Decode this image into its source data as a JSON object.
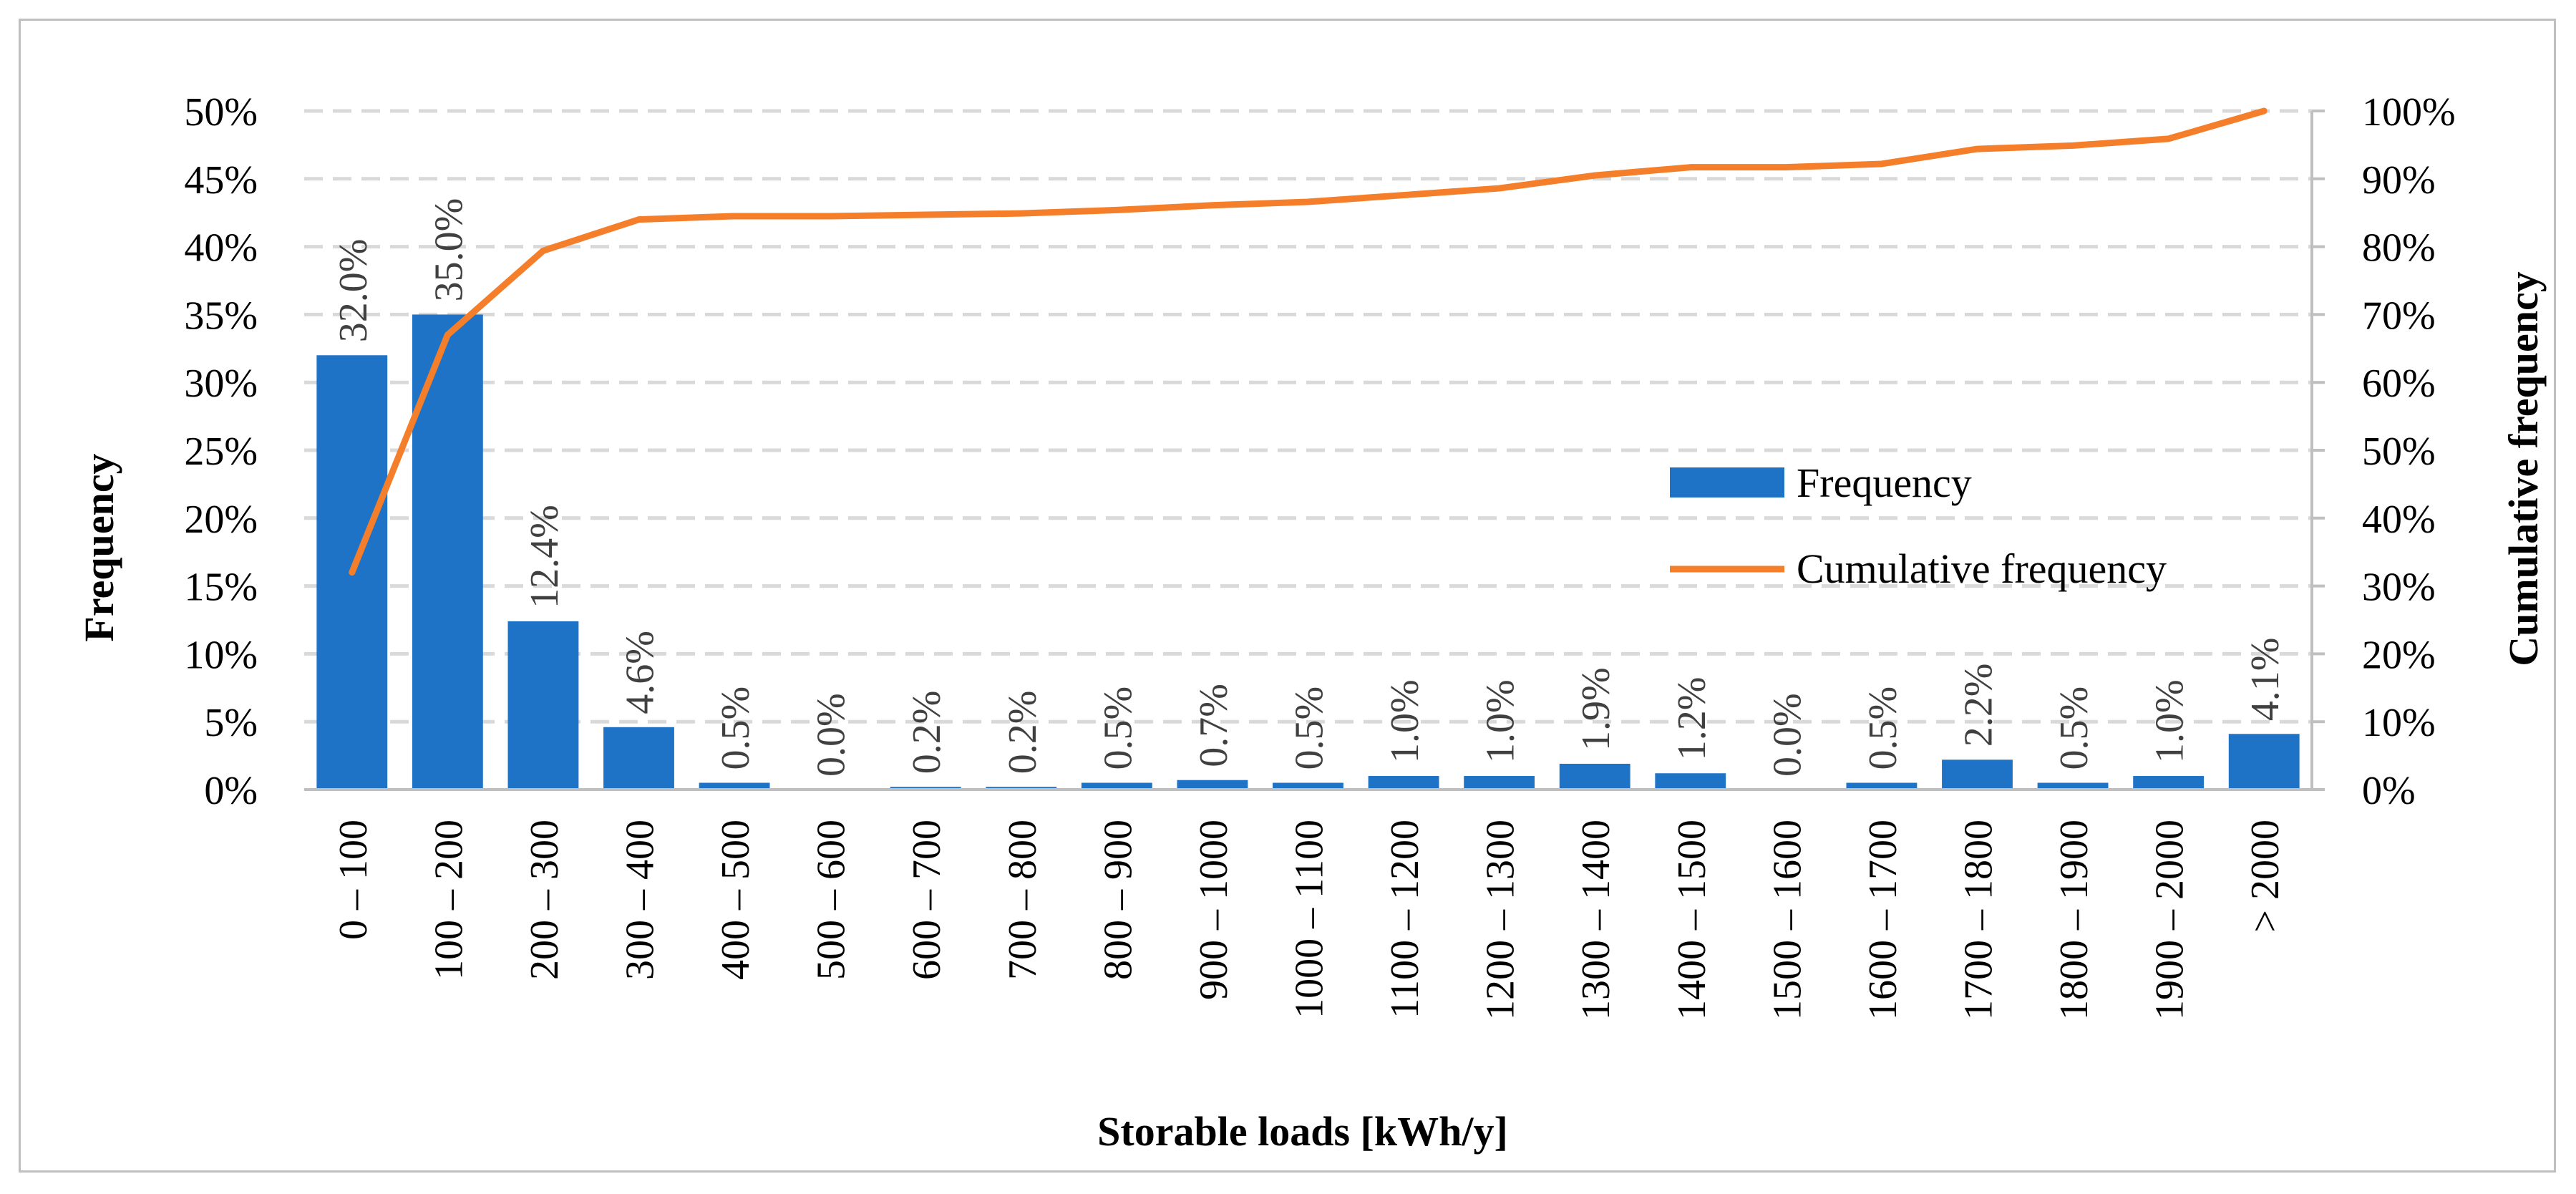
{
  "chart_data": {
    "type": "bar+line",
    "title": "",
    "xlabel": "Storable loads [kWh/y]",
    "ylabel": "Frequency",
    "y2label": "Cumulative frequency",
    "categories": [
      "0 – 100",
      "100 – 200",
      "200 – 300",
      "300 – 400",
      "400 – 500",
      "500 – 600",
      "600 – 700",
      "700 – 800",
      "800 – 900",
      "900 – 1000",
      "1000 – 1100",
      "1100 – 1200",
      "1200 – 1300",
      "1300 – 1400",
      "1400 – 1500",
      "1500 – 1600",
      "1600 – 1700",
      "1700 – 1800",
      "1800 – 1900",
      "1900 – 2000",
      "> 2000"
    ],
    "series": [
      {
        "name": "Frequency",
        "type": "bar",
        "axis": "left",
        "color": "#1F73C6",
        "values": [
          32.0,
          35.0,
          12.4,
          4.6,
          0.5,
          0.0,
          0.2,
          0.2,
          0.5,
          0.7,
          0.5,
          1.0,
          1.0,
          1.9,
          1.2,
          0.0,
          0.5,
          2.2,
          0.5,
          1.0,
          4.1
        ],
        "labels": [
          "32.0%",
          "35.0%",
          "12.4%",
          "4.6%",
          "0.5%",
          "0.0%",
          "0.2%",
          "0.2%",
          "0.5%",
          "0.7%",
          "0.5%",
          "1.0%",
          "1.0%",
          "1.9%",
          "1.2%",
          "0.0%",
          "0.5%",
          "2.2%",
          "0.5%",
          "1.0%",
          "4.1%"
        ]
      },
      {
        "name": "Cumulative frequency",
        "type": "line",
        "axis": "right",
        "color": "#F47E2A",
        "values": [
          32.0,
          67.0,
          79.4,
          84.0,
          84.5,
          84.5,
          84.7,
          84.9,
          85.4,
          86.1,
          86.6,
          87.6,
          88.6,
          90.5,
          91.7,
          91.7,
          92.2,
          94.4,
          94.9,
          95.9,
          100.0
        ]
      }
    ],
    "ylim": [
      0,
      50
    ],
    "y2lim": [
      0,
      100
    ],
    "yticks": [
      "0%",
      "5%",
      "10%",
      "15%",
      "20%",
      "25%",
      "30%",
      "35%",
      "40%",
      "45%",
      "50%"
    ],
    "y2ticks": [
      "0%",
      "10%",
      "20%",
      "30%",
      "40%",
      "50%",
      "60%",
      "70%",
      "80%",
      "90%",
      "100%"
    ],
    "grid": true,
    "legend": {
      "position": "center-right",
      "items": [
        "Frequency",
        "Cumulative frequency"
      ]
    }
  }
}
